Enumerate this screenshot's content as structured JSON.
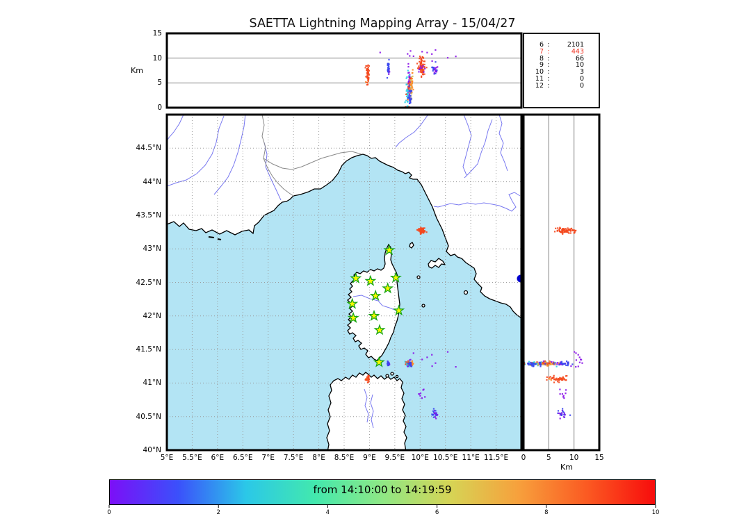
{
  "title": "SAETTA Lightning Mapping Array - 15/04/27",
  "colors": {
    "sea": "#b3e4f4",
    "land": "#ffffff",
    "coastline": "#000000",
    "river": "#7878f0",
    "admin_border": "#888888",
    "lake": "#0000cc",
    "grid": "#999999",
    "panel_frame": "#000000",
    "gridline_solid": "#808080",
    "station_fill": "#f8f800",
    "station_edge": "#17a517",
    "highlight_text": "#f03020"
  },
  "stats_panel": {
    "rows": [
      {
        "level": "6",
        "count": "2101",
        "highlight": false
      },
      {
        "level": "7",
        "count": "443",
        "highlight": true
      },
      {
        "level": "8",
        "count": "66",
        "highlight": false
      },
      {
        "level": "9",
        "count": "10",
        "highlight": false
      },
      {
        "level": "10",
        "count": "3",
        "highlight": false
      },
      {
        "level": "11",
        "count": "0",
        "highlight": false
      },
      {
        "level": "12",
        "count": "0",
        "highlight": false
      }
    ]
  },
  "axes": {
    "top_panel": {
      "ylabel": "Km",
      "ylim": [
        0,
        15
      ],
      "yticks": [
        {
          "v": 0,
          "label": "0"
        },
        {
          "v": 5,
          "label": "5"
        },
        {
          "v": 10,
          "label": "10"
        },
        {
          "v": 15,
          "label": "15"
        }
      ],
      "gridlines": [
        5,
        10
      ]
    },
    "map_panel": {
      "xlim": [
        5,
        12
      ],
      "ylim": [
        40,
        45
      ],
      "xticks": [
        {
          "v": 5,
          "label": "5°E"
        },
        {
          "v": 5.5,
          "label": "5.5°E"
        },
        {
          "v": 6,
          "label": "6°E"
        },
        {
          "v": 6.5,
          "label": "6.5°E"
        },
        {
          "v": 7,
          "label": "7°E"
        },
        {
          "v": 7.5,
          "label": "7.5°E"
        },
        {
          "v": 8,
          "label": "8°E"
        },
        {
          "v": 8.5,
          "label": "8.5°E"
        },
        {
          "v": 9,
          "label": "9°E"
        },
        {
          "v": 9.5,
          "label": "9.5°E"
        },
        {
          "v": 10,
          "label": "10°E"
        },
        {
          "v": 10.5,
          "label": "10.5°E"
        },
        {
          "v": 11,
          "label": "11°E"
        },
        {
          "v": 11.5,
          "label": "11.5°E"
        }
      ],
      "yticks": [
        {
          "v": 40,
          "label": "40°N"
        },
        {
          "v": 40.5,
          "label": "40.5°N"
        },
        {
          "v": 41,
          "label": "41°N"
        },
        {
          "v": 41.5,
          "label": "41.5°N"
        },
        {
          "v": 42,
          "label": "42°N"
        },
        {
          "v": 42.5,
          "label": "42.5°N"
        },
        {
          "v": 43,
          "label": "43°N"
        },
        {
          "v": 43.5,
          "label": "43.5°N"
        },
        {
          "v": 44,
          "label": "44°N"
        },
        {
          "v": 44.5,
          "label": "44.5°N"
        }
      ],
      "grid_step": 0.5
    },
    "right_panel": {
      "xlabel": "Km",
      "xlim": [
        0,
        15
      ],
      "xticks": [
        {
          "v": 0,
          "label": "0"
        },
        {
          "v": 5,
          "label": "5"
        },
        {
          "v": 10,
          "label": "10"
        },
        {
          "v": 15,
          "label": "15"
        }
      ],
      "gridlines": [
        5,
        10
      ]
    }
  },
  "colorbar": {
    "label": "from 14:10:00 to 14:19:59",
    "ticks": [
      {
        "v": 0,
        "label": "0"
      },
      {
        "v": 2,
        "label": "2"
      },
      {
        "v": 4,
        "label": "4"
      },
      {
        "v": 6,
        "label": "6"
      },
      {
        "v": 8,
        "label": "8"
      },
      {
        "v": 10,
        "label": "10"
      }
    ],
    "range": [
      0,
      10
    ],
    "gradient": [
      "#7c0ff7",
      "#3b50fb",
      "#2bc8e8",
      "#42e8ae",
      "#8fe885",
      "#d6d455",
      "#f7a03c",
      "#fb5a22",
      "#f80c0c"
    ]
  },
  "chart_data": {
    "type": "scatter",
    "title": "SAETTA Lightning Mapping Array - 15/04/27",
    "panels": {
      "top": {
        "x": "longitude_deg_E",
        "y": "altitude_km",
        "xlim": [
          5,
          12
        ],
        "ylim": [
          0,
          15
        ]
      },
      "map": {
        "x": "longitude_deg_E",
        "y": "latitude_deg_N",
        "xlim": [
          5,
          12
        ],
        "ylim": [
          40,
          45
        ]
      },
      "right": {
        "x": "altitude_km",
        "y": "latitude_deg_N",
        "xlim": [
          0,
          15
        ],
        "ylim": [
          40,
          45
        ]
      }
    },
    "palette": {
      "purple": "#8a12e8",
      "blue": "#3a46ee",
      "cyan": "#2ed0e4",
      "khaki": "#cdbb62",
      "orange": "#ff8b2a",
      "red": "#f4491f"
    },
    "stations": [
      {
        "lon": 9.39,
        "lat": 42.98
      },
      {
        "lon": 8.73,
        "lat": 42.56
      },
      {
        "lon": 9.02,
        "lat": 42.52
      },
      {
        "lon": 9.52,
        "lat": 42.57
      },
      {
        "lon": 9.36,
        "lat": 42.41
      },
      {
        "lon": 9.12,
        "lat": 42.3
      },
      {
        "lon": 8.66,
        "lat": 42.18
      },
      {
        "lon": 9.58,
        "lat": 42.08
      },
      {
        "lon": 8.68,
        "lat": 41.97
      },
      {
        "lon": 9.09,
        "lat": 42.0
      },
      {
        "lon": 9.2,
        "lat": 41.79
      },
      {
        "lon": 9.19,
        "lat": 41.31
      }
    ],
    "clusters": [
      {
        "name": "ligurian-sea-storm-red",
        "n": 80,
        "lon": 10.02,
        "lon_sd": 0.03,
        "lat": 43.27,
        "lat_sd": 0.02,
        "alt": 8.4,
        "alt_sd": 1.1,
        "colors": [
          [
            "red",
            1
          ]
        ]
      },
      {
        "name": "tyrrhenian-band-purple",
        "n": 45,
        "lon": 9.785,
        "lon_sd": 0.012,
        "lat": 41.295,
        "lat_sd": 0.014,
        "alt": 5.0,
        "alt_sd": 1.6,
        "colors": [
          [
            "purple",
            1
          ]
        ]
      },
      {
        "name": "tyrrhenian-band-cyan",
        "n": 40,
        "lon": 9.755,
        "lon_sd": 0.018,
        "lat": 41.29,
        "lat_sd": 0.016,
        "alt": 3.0,
        "alt_sd": 2.0,
        "colors": [
          [
            "cyan",
            1
          ]
        ]
      },
      {
        "name": "tyrrhenian-band-khaki",
        "n": 32,
        "lon": 9.82,
        "lon_sd": 0.014,
        "lat": 41.285,
        "lat_sd": 0.013,
        "alt": 4.3,
        "alt_sd": 1.3,
        "colors": [
          [
            "khaki",
            1
          ]
        ]
      },
      {
        "name": "tyrrhenian-band-orange",
        "n": 18,
        "lon": 9.835,
        "lon_sd": 0.018,
        "lat": 41.29,
        "lat_sd": 0.014,
        "alt": 4.9,
        "alt_sd": 1.2,
        "colors": [
          [
            "orange",
            1
          ]
        ]
      },
      {
        "name": "tyrrhenian-band-red",
        "n": 15,
        "lon": 9.8,
        "lon_sd": 0.025,
        "lat": 41.3,
        "lat_sd": 0.015,
        "alt": 3.6,
        "alt_sd": 1.6,
        "colors": [
          [
            "red",
            1
          ]
        ]
      },
      {
        "name": "tyrrhenian-band-blue",
        "n": 28,
        "lon": 9.79,
        "lon_sd": 0.02,
        "lat": 41.285,
        "lat_sd": 0.015,
        "alt": 1.8,
        "alt_sd": 1.2,
        "colors": [
          [
            "blue",
            1
          ]
        ]
      },
      {
        "name": "west-blue-streak",
        "n": 30,
        "lon": 9.37,
        "lon_sd": 0.01,
        "lat": 41.29,
        "lat_sd": 0.012,
        "alt": 7.9,
        "alt_sd": 0.8,
        "colors": [
          [
            "blue",
            0.7
          ],
          [
            "purple",
            0.3
          ]
        ]
      },
      {
        "name": "sardinia-coast-red",
        "n": 50,
        "lon": 8.965,
        "lon_sd": 0.016,
        "lat": 41.06,
        "lat_sd": 0.02,
        "alt": 6.6,
        "alt_sd": 0.9,
        "colors": [
          [
            "red",
            0.92
          ],
          [
            "orange",
            0.08
          ]
        ]
      },
      {
        "name": "sparse-purple-mid",
        "n": 8,
        "lon": 10.05,
        "lon_sd": 0.05,
        "lat": 40.83,
        "lat_sd": 0.03,
        "alt": 7.8,
        "alt_sd": 0.4,
        "colors": [
          [
            "purple",
            1
          ]
        ]
      },
      {
        "name": "south-blue-cluster",
        "n": 24,
        "lon": 10.28,
        "lon_sd": 0.035,
        "lat": 40.54,
        "lat_sd": 0.035,
        "alt": 7.6,
        "alt_sd": 0.6,
        "colors": [
          [
            "blue",
            0.75
          ],
          [
            "purple",
            0.25
          ]
        ]
      },
      {
        "name": "high-purple-outliers",
        "n": 12,
        "lon": 9.95,
        "lon_sd": 0.3,
        "lat": 41.35,
        "lat_sd": 0.1,
        "alt": 10.6,
        "alt_sd": 1.0,
        "colors": [
          [
            "purple",
            1
          ]
        ]
      }
    ]
  }
}
